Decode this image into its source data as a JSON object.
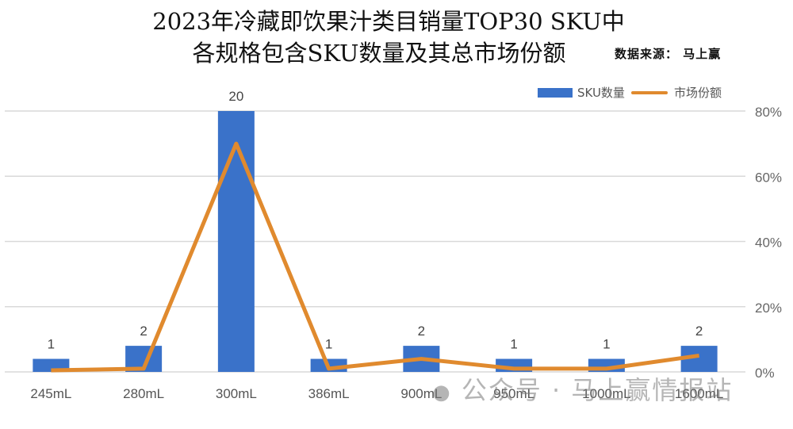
{
  "title_line1": "2023年冷藏即饮果汁类目销量TOP30 SKU中",
  "title_line2": "各规格包含SKU数量及其总市场份额",
  "source": "数据来源： 马上赢",
  "legend": {
    "bar": "SKU数量",
    "line": "市场份额"
  },
  "watermark": "公众号 · 马上赢情报站",
  "colors": {
    "bar": "#3a72c9",
    "line": "#e08a2e",
    "grid": "#d9d9d9"
  },
  "chart_data": {
    "type": "bar+line",
    "title": "2023年冷藏即饮果汁类目销量TOP30 SKU中各规格包含SKU数量及其总市场份额",
    "categories": [
      "245mL",
      "280mL",
      "300mL",
      "386mL",
      "900mL",
      "950mL",
      "1000mL",
      "1600mL"
    ],
    "series": [
      {
        "name": "SKU数量",
        "type": "bar",
        "axis": "left",
        "values": [
          1,
          2,
          20,
          1,
          2,
          1,
          1,
          2
        ]
      },
      {
        "name": "市场份额",
        "type": "line",
        "axis": "right",
        "values": [
          0.5,
          1,
          70,
          1,
          4,
          1,
          1,
          5
        ],
        "unit": "%"
      }
    ],
    "right_axis": {
      "ticks": [
        "0%",
        "20%",
        "40%",
        "60%",
        "80%"
      ],
      "ylim": [
        0,
        80
      ]
    },
    "left_axis": {
      "ylim": [
        0,
        20
      ],
      "hidden": true
    },
    "grid": true,
    "legend_position": "top-right",
    "data_labels": [
      1,
      2,
      20,
      1,
      2,
      1,
      1,
      2
    ]
  }
}
